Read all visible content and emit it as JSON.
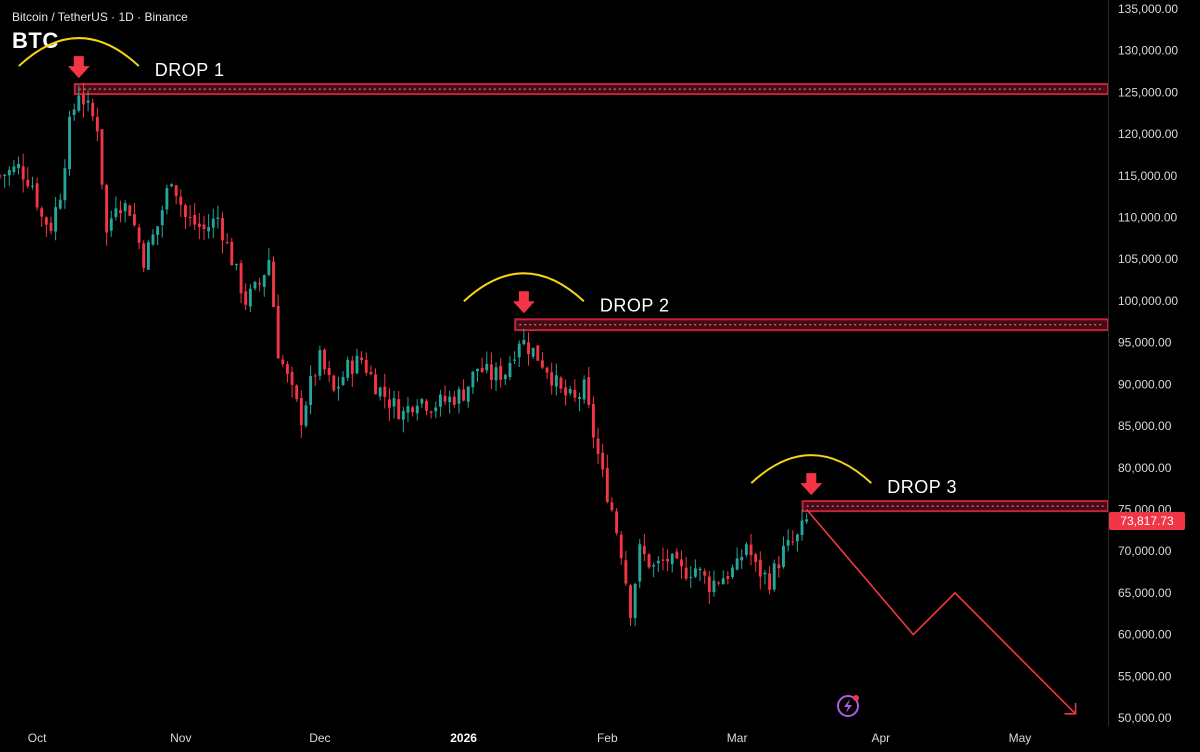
{
  "header": {
    "symbol": "Bitcoin / TetherUS · 1D · Binance",
    "ticker": "BTC"
  },
  "last_price": {
    "label": "73,817.73",
    "color": "#f23645"
  },
  "colors": {
    "up": "#26a69a",
    "down": "#f23645",
    "zone": "#c4233a",
    "arc": "#f5d414",
    "arrow": "#f23645",
    "projection": "#f23645"
  },
  "chart_data": {
    "type": "candlestick",
    "title": "",
    "xlabel": "",
    "ylabel": "",
    "ylim": [
      50000,
      135000
    ],
    "grid": false,
    "y_ticks": [
      "135,000.00",
      "130,000.00",
      "125,000.00",
      "120,000.00",
      "115,000.00",
      "110,000.00",
      "105,000.00",
      "100,000.00",
      "95,000.00",
      "90,000.00",
      "85,000.00",
      "80,000.00",
      "75,000.00",
      "70,000.00",
      "65,000.00",
      "60,000.00",
      "55,000.00",
      "50,000.00"
    ],
    "y_tick_values": [
      135000,
      130000,
      125000,
      120000,
      115000,
      110000,
      105000,
      100000,
      95000,
      90000,
      85000,
      80000,
      75000,
      70000,
      65000,
      60000,
      55000,
      50000
    ],
    "x_ticks": [
      {
        "label": "Oct",
        "date": "2025-10-01",
        "bold": false
      },
      {
        "label": "Nov",
        "date": "2025-11-01",
        "bold": false
      },
      {
        "label": "Dec",
        "date": "2025-12-01",
        "bold": false
      },
      {
        "label": "2026",
        "date": "2026-01-01",
        "bold": true
      },
      {
        "label": "Feb",
        "date": "2026-02-01",
        "bold": false
      },
      {
        "label": "Mar",
        "date": "2026-03-01",
        "bold": false
      },
      {
        "label": "Apr",
        "date": "2026-04-01",
        "bold": false
      },
      {
        "label": "May",
        "date": "2026-05-01",
        "bold": false
      }
    ],
    "x_range": [
      "2025-09-23",
      "2026-05-20"
    ],
    "close_path": [
      [
        "2025-09-23",
        115000
      ],
      [
        "2025-09-27",
        116000
      ],
      [
        "2025-09-30",
        114000
      ],
      [
        "2025-10-02",
        110000
      ],
      [
        "2025-10-04",
        109000
      ],
      [
        "2025-10-06",
        113000
      ],
      [
        "2025-10-08",
        121000
      ],
      [
        "2025-10-10",
        125200
      ],
      [
        "2025-10-12",
        123000
      ],
      [
        "2025-10-14",
        121000
      ],
      [
        "2025-10-16",
        108000
      ],
      [
        "2025-10-18",
        112000
      ],
      [
        "2025-10-21",
        111000
      ],
      [
        "2025-10-24",
        105000
      ],
      [
        "2025-10-27",
        109000
      ],
      [
        "2025-10-30",
        115000
      ],
      [
        "2025-11-02",
        110000
      ],
      [
        "2025-11-06",
        108500
      ],
      [
        "2025-11-09",
        110000
      ],
      [
        "2025-11-12",
        105000
      ],
      [
        "2025-11-15",
        100000
      ],
      [
        "2025-11-18",
        102000
      ],
      [
        "2025-11-20",
        105000
      ],
      [
        "2025-11-22",
        94000
      ],
      [
        "2025-11-25",
        89000
      ],
      [
        "2025-11-27",
        86000
      ],
      [
        "2025-11-29",
        90000
      ],
      [
        "2025-12-01",
        93000
      ],
      [
        "2025-12-04",
        89000
      ],
      [
        "2025-12-07",
        92000
      ],
      [
        "2025-12-10",
        93000
      ],
      [
        "2025-12-13",
        90000
      ],
      [
        "2025-12-16",
        88000
      ],
      [
        "2025-12-19",
        86500
      ],
      [
        "2025-12-22",
        88500
      ],
      [
        "2025-12-25",
        87500
      ],
      [
        "2025-12-28",
        88000
      ],
      [
        "2026-01-01",
        89000
      ],
      [
        "2026-01-04",
        92000
      ],
      [
        "2026-01-07",
        91000
      ],
      [
        "2026-01-10",
        91500
      ],
      [
        "2026-01-13",
        95500
      ],
      [
        "2026-01-16",
        94000
      ],
      [
        "2026-01-19",
        92000
      ],
      [
        "2026-01-22",
        89000
      ],
      [
        "2026-01-25",
        88000
      ],
      [
        "2026-01-27",
        89500
      ],
      [
        "2026-01-29",
        84000
      ],
      [
        "2026-01-31",
        79000
      ],
      [
        "2026-02-02",
        75000
      ],
      [
        "2026-02-04",
        70000
      ],
      [
        "2026-02-06",
        63000
      ],
      [
        "2026-02-08",
        70000
      ],
      [
        "2026-02-11",
        68000
      ],
      [
        "2026-02-14",
        69000
      ],
      [
        "2026-02-17",
        67500
      ],
      [
        "2026-02-20",
        68000
      ],
      [
        "2026-02-23",
        66000
      ],
      [
        "2026-02-26",
        67000
      ],
      [
        "2026-03-01",
        68000
      ],
      [
        "2026-03-03",
        71000
      ],
      [
        "2026-03-05",
        68000
      ],
      [
        "2026-03-08",
        66500
      ],
      [
        "2026-03-11",
        70000
      ],
      [
        "2026-03-14",
        71500
      ],
      [
        "2026-03-16",
        73817.73
      ]
    ],
    "annotations": {
      "drops": [
        {
          "label": "DROP 1",
          "date": "2025-10-10",
          "zone": [
            124800,
            126000
          ],
          "zone_start": "2025-10-10"
        },
        {
          "label": "DROP 2",
          "date": "2026-01-14",
          "zone": [
            96500,
            97800
          ],
          "zone_start": "2026-01-13"
        },
        {
          "label": "DROP 3",
          "date": "2026-03-17",
          "zone": [
            74800,
            76000
          ],
          "zone_start": "2026-03-16"
        }
      ],
      "projection": [
        [
          "2026-03-16",
          75000
        ],
        [
          "2026-04-08",
          60000
        ],
        [
          "2026-04-17",
          65000
        ],
        [
          "2026-05-13",
          50500
        ]
      ]
    }
  }
}
